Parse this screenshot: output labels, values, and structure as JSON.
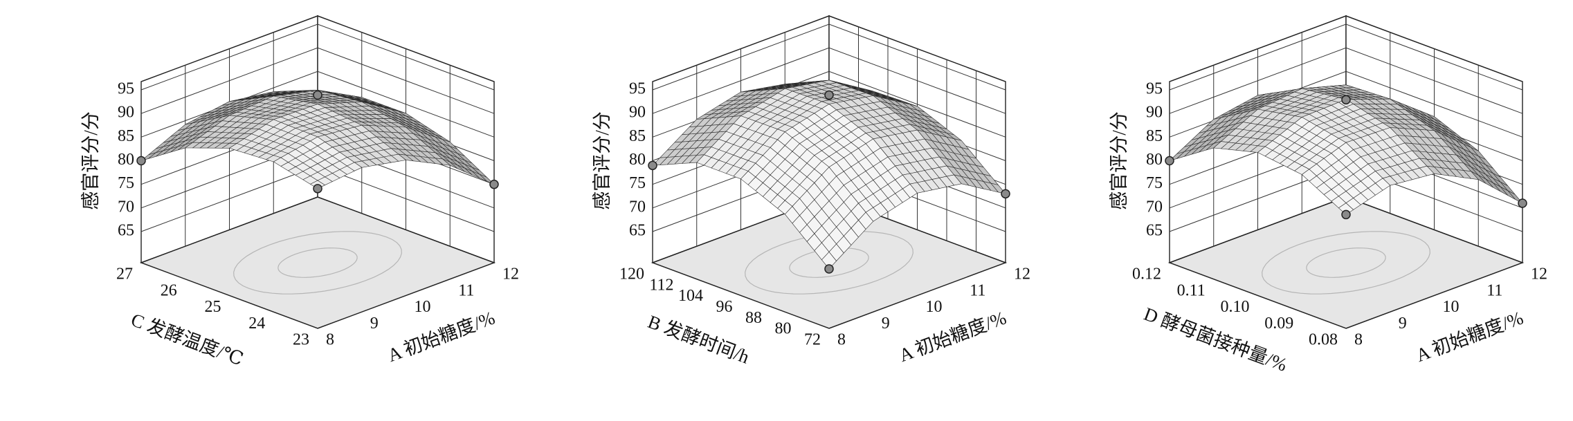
{
  "chart_data": [
    {
      "type": "surface",
      "z_label": "感官评分/分",
      "x_label": "A 初始糖度/%",
      "y_label": "C 发酵温度/℃",
      "x": [
        8,
        9,
        10,
        11,
        12
      ],
      "y": [
        23,
        24,
        25,
        26,
        27
      ],
      "z": [
        [
          88.0,
          89.0,
          87.1,
          82.5,
          75.0
        ],
        [
          90.2,
          92.0,
          91.0,
          87.1,
          80.5
        ],
        [
          89.6,
          92.2,
          92.0,
          89.0,
          83.1
        ],
        [
          86.2,
          89.6,
          90.2,
          88.0,
          83.0
        ],
        [
          80.0,
          84.2,
          85.6,
          84.2,
          80.0
        ]
      ],
      "xlim": [
        8,
        12
      ],
      "xticks": [
        8,
        9,
        10,
        11,
        12
      ],
      "ylim": [
        23,
        27
      ],
      "yticks": [
        23,
        24,
        25,
        26,
        27
      ],
      "zlim": [
        65,
        95
      ],
      "zticks": [
        65,
        70,
        75,
        80,
        85,
        90,
        95
      ]
    },
    {
      "type": "surface",
      "z_label": "感官评分/分",
      "x_label": "A 初始糖度/%",
      "y_label": "B 发酵时间/h",
      "x": [
        8,
        9,
        10,
        11,
        12
      ],
      "y": [
        72,
        84,
        96,
        108,
        120
      ],
      "z": [
        [
          71.0,
          77.6,
          80.1,
          78.6,
          73.0
        ],
        [
          79.1,
          85.6,
          88.1,
          86.5,
          80.8
        ],
        [
          83.1,
          89.6,
          92.0,
          90.3,
          84.6
        ],
        [
          83.1,
          89.5,
          91.8,
          90.1,
          84.3
        ],
        [
          79.0,
          85.3,
          87.6,
          85.8,
          80.0
        ]
      ],
      "xlim": [
        8,
        12
      ],
      "xticks": [
        8,
        9,
        10,
        11,
        12
      ],
      "ylim": [
        72,
        120
      ],
      "yticks": [
        72,
        80,
        88,
        96,
        104,
        112,
        120
      ],
      "zlim": [
        65,
        95
      ],
      "zticks": [
        65,
        70,
        75,
        80,
        85,
        90,
        95
      ]
    },
    {
      "type": "surface",
      "z_label": "感官评分/分",
      "x_label": "A 初始糖度/%",
      "y_label": "D 酵母菌接种量/%",
      "x": [
        8,
        9,
        10,
        11,
        12
      ],
      "y": [
        0.08,
        0.09,
        0.1,
        0.11,
        0.12
      ],
      "z": [
        [
          82.5,
          85.2,
          84.2,
          79.5,
          71.0
        ],
        [
          87.5,
          90.8,
          90.5,
          86.4,
          78.6
        ],
        [
          88.7,
          92.7,
          93.0,
          89.6,
          82.4
        ],
        [
          86.2,
          90.9,
          91.8,
          89.1,
          82.6
        ],
        [
          80.0,
          85.3,
          86.9,
          84.8,
          79.0
        ]
      ],
      "xlim": [
        8,
        12
      ],
      "xticks": [
        8,
        9,
        10,
        11,
        12
      ],
      "ylim": [
        0.08,
        0.12
      ],
      "yticks": [
        0.08,
        0.09,
        {
          "value": 0.1,
          "label": "0.10"
        },
        0.11,
        0.12
      ],
      "zlim": [
        65,
        95
      ],
      "zticks": [
        65,
        70,
        75,
        80,
        85,
        90,
        95
      ]
    }
  ]
}
